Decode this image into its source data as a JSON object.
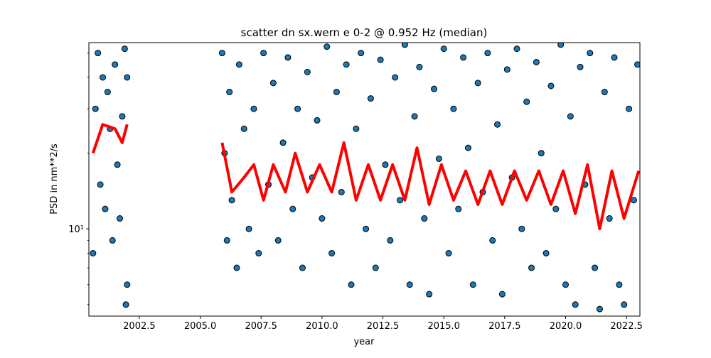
{
  "chart_data": {
    "type": "scatter",
    "title": "scatter dn sx.wern e 0-2 @ 0.952 Hz (median)",
    "xlabel": "year",
    "ylabel": "PSD in nm**2/s",
    "xlim": [
      2000.43,
      2023.05
    ],
    "ylim": [
      4.5,
      55
    ],
    "log_y": true,
    "xticks": [
      2002.5,
      {
        "value": 2005,
        "label": "2005.0"
      },
      2007.5,
      {
        "value": 2010,
        "label": "2010.0"
      },
      2012.5,
      {
        "value": 2015,
        "label": "2015.0"
      },
      2017.5,
      {
        "value": 2020,
        "label": "2020.0"
      },
      2022.5
    ],
    "yticks": [
      {
        "value": 10,
        "label": "10¹"
      }
    ],
    "yminorticks": [
      5,
      6,
      7,
      8,
      9,
      20,
      30,
      40,
      50
    ],
    "series": [
      {
        "type": "scatter",
        "color": "#1f77b4",
        "x": [
          2000.6,
          2000.7,
          2000.8,
          2000.9,
          2001.0,
          2001.1,
          2001.2,
          2001.3,
          2001.4,
          2001.5,
          2001.6,
          2001.7,
          2001.8,
          2001.9,
          2001.95,
          2002.0,
          2002.0,
          2005.9,
          2006.0,
          2006.1,
          2006.2,
          2006.3,
          2006.5,
          2006.6,
          2006.8,
          2007.0,
          2007.2,
          2007.4,
          2007.6,
          2007.8,
          2008.0,
          2008.2,
          2008.4,
          2008.6,
          2008.8,
          2009.0,
          2009.2,
          2009.4,
          2009.6,
          2009.8,
          2010.0,
          2010.2,
          2010.4,
          2010.6,
          2010.8,
          2011.0,
          2011.2,
          2011.4,
          2011.6,
          2011.8,
          2012.0,
          2012.2,
          2012.4,
          2012.6,
          2012.8,
          2013.0,
          2013.2,
          2013.4,
          2013.6,
          2013.8,
          2014.0,
          2014.2,
          2014.4,
          2014.6,
          2014.8,
          2015.0,
          2015.2,
          2015.4,
          2015.6,
          2015.8,
          2016.0,
          2016.2,
          2016.4,
          2016.6,
          2016.8,
          2017.0,
          2017.2,
          2017.4,
          2017.6,
          2017.8,
          2018.0,
          2018.2,
          2018.4,
          2018.6,
          2018.8,
          2019.0,
          2019.2,
          2019.4,
          2019.6,
          2019.8,
          2020.0,
          2020.2,
          2020.4,
          2020.6,
          2020.8,
          2021.0,
          2021.2,
          2021.4,
          2021.6,
          2021.8,
          2022.0,
          2022.2,
          2022.4,
          2022.6,
          2022.8,
          2022.95
        ],
        "values": [
          8,
          30,
          50,
          15,
          40,
          12,
          35,
          25,
          9,
          45,
          18,
          11,
          28,
          52,
          5,
          6,
          40,
          50,
          20,
          9,
          35,
          13,
          7,
          45,
          25,
          10,
          30,
          8,
          50,
          15,
          38,
          9,
          22,
          48,
          12,
          30,
          7,
          42,
          16,
          27,
          11,
          53,
          8,
          35,
          14,
          45,
          6,
          25,
          50,
          10,
          33,
          7,
          47,
          18,
          9,
          40,
          13,
          54,
          6,
          28,
          44,
          11,
          5.5,
          36,
          19,
          52,
          8,
          30,
          12,
          48,
          21,
          6,
          38,
          14,
          50,
          9,
          26,
          5.5,
          43,
          16,
          52,
          10,
          32,
          7,
          46,
          20,
          8,
          37,
          12,
          54,
          6,
          28,
          5,
          44,
          15,
          50,
          7,
          4.8,
          35,
          11,
          48,
          6,
          5,
          30,
          13,
          45
        ]
      },
      {
        "type": "line",
        "color": "#ff0000",
        "x": [
          2000.6,
          2001.0,
          2001.5,
          2001.8,
          2002.0,
          2003.0,
          2005.9,
          2006.3,
          2006.8,
          2007.2,
          2007.6,
          2008.0,
          2008.5,
          2008.9,
          2009.4,
          2009.9,
          2010.4,
          2010.9,
          2011.4,
          2011.9,
          2012.4,
          2012.9,
          2013.4,
          2013.9,
          2014.4,
          2014.9,
          2015.4,
          2015.9,
          2016.4,
          2016.9,
          2017.4,
          2017.9,
          2018.4,
          2018.9,
          2019.4,
          2019.9,
          2020.4,
          2020.9,
          2021.4,
          2021.9,
          2022.4,
          2023.0
        ],
        "values": [
          20,
          26,
          25,
          22,
          26,
          null,
          22,
          14,
          16,
          18,
          13,
          18,
          14,
          20,
          14,
          18,
          14,
          22,
          13,
          18,
          13,
          18,
          13,
          21,
          12.5,
          18,
          13,
          17,
          12.5,
          17,
          12.5,
          17,
          13,
          17,
          12.5,
          17,
          11.5,
          18,
          10,
          17,
          11,
          17
        ]
      }
    ]
  }
}
